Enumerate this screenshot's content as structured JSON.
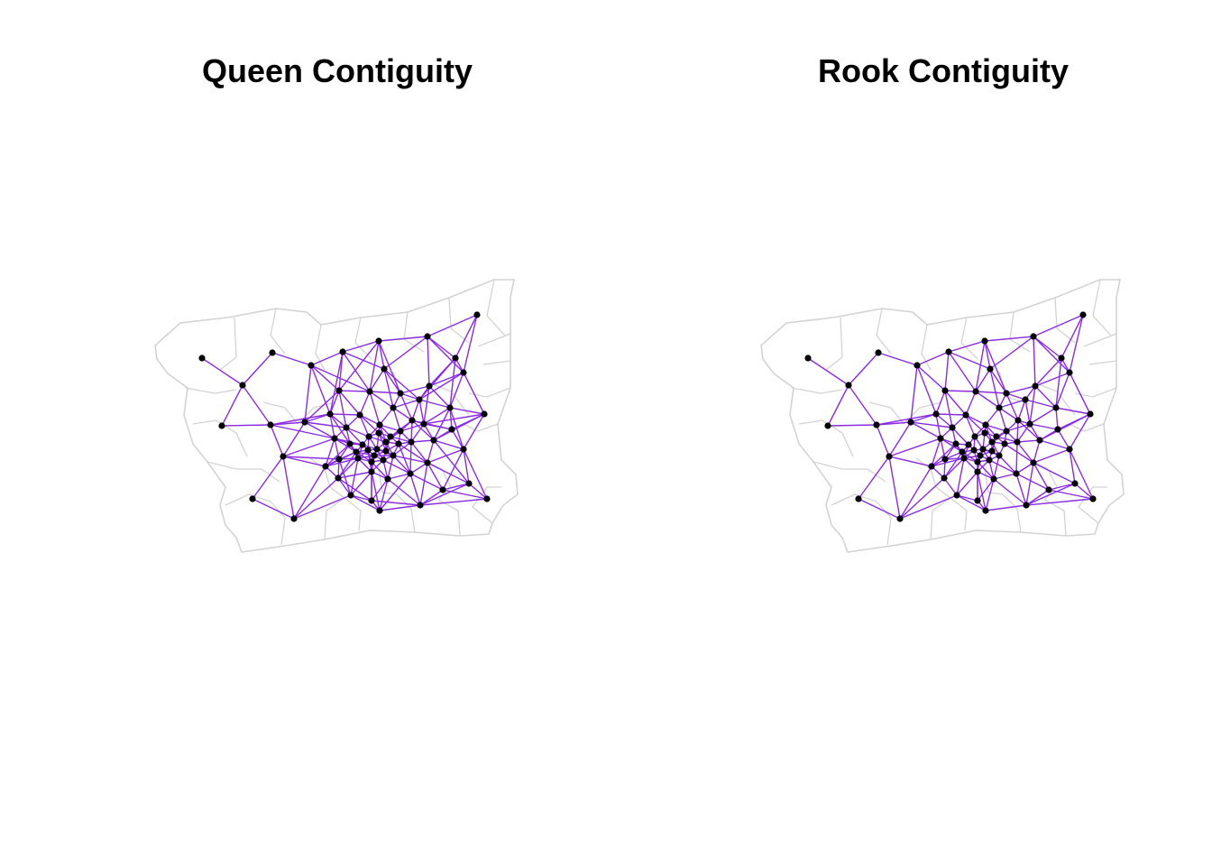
{
  "panels": [
    {
      "title": "Queen Contiguity"
    },
    {
      "title": "Rook Contiguity"
    }
  ],
  "colors": {
    "boundary": "#d3d3d3",
    "edge": "#8a2be2",
    "node": "#000000",
    "background": "#ffffff"
  }
}
